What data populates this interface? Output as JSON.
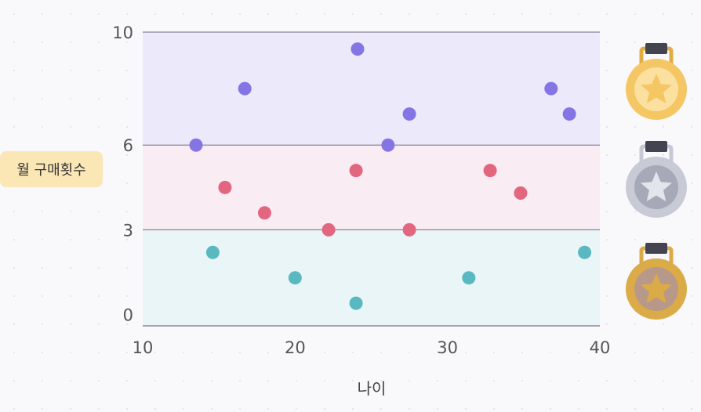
{
  "chart_data": {
    "type": "scatter",
    "xlabel": "나이",
    "ylabel": "월 구매횟수",
    "xlim": [
      10,
      40
    ],
    "ylim": [
      -0.4,
      10
    ],
    "x_ticks": [
      10,
      20,
      30,
      40
    ],
    "y_ticks": [
      0,
      3,
      6,
      10
    ],
    "y_tick_labels": [
      "0",
      "3",
      "6",
      "10"
    ],
    "bands": [
      {
        "tier": "gold",
        "range": [
          6,
          10
        ],
        "color": "#ece9fb"
      },
      {
        "tier": "silver",
        "range": [
          3,
          6
        ],
        "color": "#f9ecf2"
      },
      {
        "tier": "bronze",
        "range": [
          -0.4,
          3
        ],
        "color": "#e9f5f6"
      }
    ],
    "series": [
      {
        "color": "#8475e4",
        "points": [
          [
            13.5,
            6.0
          ],
          [
            16.7,
            8.0
          ],
          [
            24.1,
            9.4
          ],
          [
            26.1,
            6.0
          ],
          [
            27.5,
            7.1
          ],
          [
            36.8,
            8.0
          ],
          [
            38.0,
            7.1
          ]
        ]
      },
      {
        "color": "#e36680",
        "points": [
          [
            15.4,
            4.5
          ],
          [
            18.0,
            3.6
          ],
          [
            22.2,
            3.0
          ],
          [
            24.0,
            5.1
          ],
          [
            27.5,
            3.0
          ],
          [
            32.8,
            5.1
          ],
          [
            34.8,
            4.3
          ]
        ]
      },
      {
        "color": "#5ab8c0",
        "points": [
          [
            14.6,
            2.2
          ],
          [
            20.0,
            1.3
          ],
          [
            24.0,
            0.4
          ],
          [
            31.4,
            1.3
          ],
          [
            39.0,
            2.2
          ]
        ]
      }
    ],
    "grid": false,
    "legend": "none"
  },
  "medals": [
    {
      "tier": "gold",
      "outer": "#f5c764",
      "inner": "#fbe0a0",
      "star": "#f5c764",
      "ribbon": "#e2ac45",
      "clasp": "#444450"
    },
    {
      "tier": "silver",
      "outer": "#c8cbd6",
      "inner": "#a7a9b8",
      "star": "#e3e5ec",
      "ribbon": "#c6c9d4",
      "clasp": "#444450"
    },
    {
      "tier": "bronze",
      "outer": "#dbab48",
      "inner": "#b89888",
      "star": "#dbab48",
      "ribbon": "#dbab48",
      "clasp": "#444450"
    }
  ]
}
